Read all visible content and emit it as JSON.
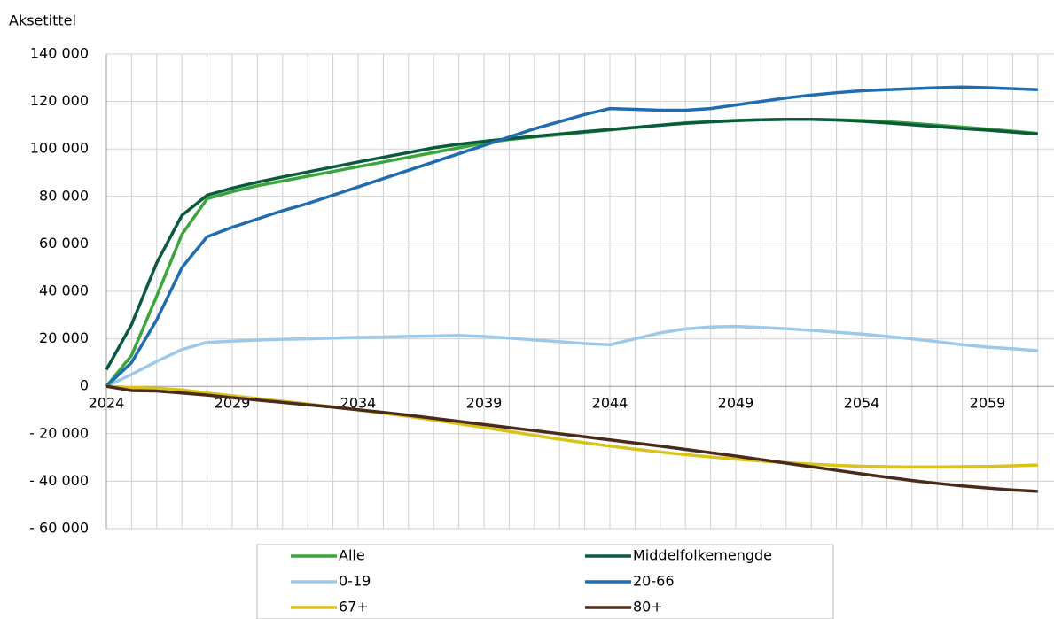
{
  "chart_data": {
    "type": "line",
    "y_label": "Aksetittel",
    "categories": [
      "2024",
      null,
      null,
      null,
      null,
      "2029",
      null,
      null,
      null,
      null,
      "2034",
      null,
      null,
      null,
      null,
      "2039",
      null,
      null,
      null,
      null,
      "2044",
      null,
      null,
      null,
      null,
      "2049",
      null,
      null,
      null,
      null,
      "2054",
      null,
      null,
      null,
      null,
      "2059",
      null,
      null
    ],
    "ylim": [
      -60000,
      140000
    ],
    "yticks": [
      {
        "value": -60000,
        "label": "- 60 000"
      },
      {
        "value": -40000,
        "label": "- 40 000"
      },
      {
        "value": -20000,
        "label": "- 20 000"
      },
      0,
      {
        "value": 20000,
        "label": "20 000"
      },
      {
        "value": 40000,
        "label": "40 000"
      },
      {
        "value": 60000,
        "label": "60 000"
      },
      {
        "value": 80000,
        "label": "80 000"
      },
      {
        "value": 100000,
        "label": "100 000"
      },
      {
        "value": 120000,
        "label": "120 000"
      },
      {
        "value": 140000,
        "label": "140 000"
      }
    ],
    "grid": true,
    "legend": "bottom",
    "series": [
      {
        "name": "Alle",
        "color": "#3aa53a",
        "values": [
          0,
          13000,
          38000,
          64000,
          79000,
          82000,
          84500,
          86500,
          88500,
          90500,
          92500,
          94500,
          96500,
          98500,
          100500,
          102500,
          104000,
          105000,
          106000,
          107000,
          108000,
          109000,
          110000,
          111000,
          111500,
          112000,
          112300,
          112500,
          112500,
          112300,
          112000,
          111500,
          110800,
          110000,
          109200,
          108400,
          107500,
          106500
        ]
      },
      {
        "name": "Middelfolkemengde",
        "color": "#0b5a3c",
        "values": [
          7000,
          26000,
          52000,
          72000,
          80500,
          83500,
          86000,
          88200,
          90300,
          92400,
          94500,
          96500,
          98500,
          100500,
          102000,
          103200,
          104300,
          105300,
          106300,
          107300,
          108200,
          109100,
          110000,
          110800,
          111400,
          111900,
          112300,
          112500,
          112500,
          112200,
          111700,
          111000,
          110200,
          109400,
          108600,
          107900,
          107100,
          106300
        ]
      },
      {
        "name": "0-19",
        "color": "#9dc8e8",
        "values": [
          0,
          5000,
          10500,
          15500,
          18500,
          19000,
          19500,
          19800,
          20000,
          20300,
          20600,
          20800,
          21000,
          21200,
          21400,
          21000,
          20300,
          19500,
          18800,
          18000,
          17500,
          20000,
          22500,
          24200,
          25000,
          25200,
          24800,
          24300,
          23600,
          22800,
          22000,
          21000,
          20000,
          18800,
          17500,
          16500,
          15800,
          15000
        ]
      },
      {
        "name": "20-66",
        "color": "#1f6db0",
        "values": [
          0,
          10000,
          28000,
          50000,
          63000,
          67000,
          70500,
          74000,
          77000,
          80500,
          84000,
          87500,
          91000,
          94500,
          98000,
          101500,
          105000,
          108500,
          111500,
          114500,
          117000,
          116700,
          116300,
          116300,
          117000,
          118500,
          120000,
          121500,
          122700,
          123700,
          124500,
          125000,
          125400,
          125800,
          126100,
          125800,
          125400,
          125000
        ]
      },
      {
        "name": "67+",
        "color": "#d9c21a",
        "values": [
          0,
          -500,
          -800,
          -1500,
          -2800,
          -4000,
          -5200,
          -6300,
          -7500,
          -8700,
          -10000,
          -11300,
          -12700,
          -14200,
          -15800,
          -17400,
          -19000,
          -20700,
          -22300,
          -23800,
          -25200,
          -26500,
          -27700,
          -28800,
          -29800,
          -30700,
          -31500,
          -32200,
          -32800,
          -33300,
          -33700,
          -33900,
          -34000,
          -34000,
          -33900,
          -33800,
          -33500,
          -33200
        ]
      },
      {
        "name": "80+",
        "color": "#4a2a1a",
        "values": [
          0,
          -1800,
          -2000,
          -2800,
          -3700,
          -4800,
          -5800,
          -6800,
          -7800,
          -8800,
          -9900,
          -11000,
          -12200,
          -13500,
          -14800,
          -16100,
          -17400,
          -18700,
          -20000,
          -21300,
          -22600,
          -23900,
          -25200,
          -26600,
          -28000,
          -29400,
          -30900,
          -32400,
          -33900,
          -35400,
          -36900,
          -38300,
          -39700,
          -40900,
          -42000,
          -42900,
          -43700,
          -44300
        ]
      }
    ]
  }
}
